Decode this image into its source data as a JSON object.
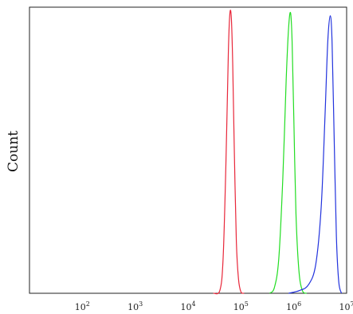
{
  "chart_data": {
    "type": "line",
    "xscale": "log",
    "xlim": [
      10,
      10000000
    ],
    "ylim": [
      0,
      100
    ],
    "ylabel": "Count",
    "xlabel": "",
    "grid": false,
    "x_ticks": [
      {
        "base": "10",
        "exp": "2"
      },
      {
        "base": "10",
        "exp": "3"
      },
      {
        "base": "10",
        "exp": "4"
      },
      {
        "base": "10",
        "exp": "5"
      },
      {
        "base": "10",
        "exp": "6"
      },
      {
        "base": "10",
        "exp": "7"
      }
    ],
    "series": [
      {
        "color": "#e8273a",
        "x": [
          30000,
          40000,
          46000,
          52000,
          58000,
          62000,
          66000,
          70000,
          75000,
          82000,
          90000,
          100000,
          115000
        ],
        "y": [
          0,
          1,
          12,
          45,
          85,
          98,
          96,
          80,
          50,
          18,
          5,
          0.5,
          0
        ]
      },
      {
        "color": "#22dd22",
        "x": [
          350000,
          430000,
          520000,
          620000,
          720000,
          800000,
          870000,
          930000,
          1000000,
          1100000,
          1250000,
          1450000,
          1750000
        ],
        "y": [
          0,
          2,
          12,
          40,
          75,
          93,
          98,
          88,
          62,
          28,
          8,
          1,
          0
        ]
      },
      {
        "color": "#2233dd",
        "x": [
          800000,
          1300000,
          1900000,
          2600000,
          3300000,
          3900000,
          4400000,
          4900000,
          5300000,
          5800000,
          6400000,
          7100000,
          8000000
        ],
        "y": [
          0,
          1,
          3,
          10,
          30,
          62,
          88,
          97,
          88,
          55,
          20,
          4,
          0
        ]
      }
    ]
  }
}
